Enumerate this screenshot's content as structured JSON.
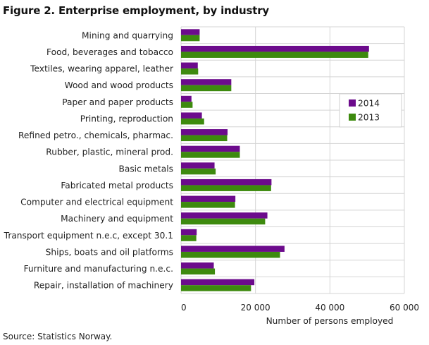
{
  "title": "Figure 2. Enterprise employment, by industry",
  "source": "Source: Statistics Norway.",
  "chart_data": {
    "type": "bar",
    "orientation": "horizontal",
    "categories": [
      "Mining and quarrying",
      "Food, beverages and tobacco",
      "Textiles, wearing apparel, leather",
      "Wood and wood products",
      "Paper and paper products",
      "Printing, reproduction",
      "Refined petro., chemicals, pharmac.",
      "Rubber, plastic, mineral prod.",
      "Basic metals",
      "Fabricated metal products",
      "Computer and electrical equipment",
      "Machinery and equipment",
      "Transport equipment n.e.c, except 30.1",
      "Ships, boats and oil platforms",
      "Furniture and manufacturing n.e.c.",
      "Repair, installation of machinery"
    ],
    "series": [
      {
        "name": "2014",
        "color": "#6c0b8c",
        "values": [
          5000,
          50500,
          4500,
          13500,
          2800,
          5600,
          12500,
          15800,
          9000,
          24300,
          14600,
          23200,
          4200,
          27800,
          8800,
          19700
        ]
      },
      {
        "name": "2013",
        "color": "#3d8a0e",
        "values": [
          5000,
          50300,
          4600,
          13500,
          3100,
          6200,
          12400,
          15800,
          9300,
          24200,
          14500,
          22600,
          4100,
          26600,
          9100,
          18800
        ]
      }
    ],
    "xlabel": "Number of persons  employed",
    "xlim": [
      0,
      60000
    ],
    "xticks": [
      0,
      20000,
      40000,
      60000
    ],
    "xtick_labels": [
      "0",
      "20 000",
      "40 000",
      "60 000"
    ],
    "legend_position": "right, mid-upper",
    "grid": true
  }
}
